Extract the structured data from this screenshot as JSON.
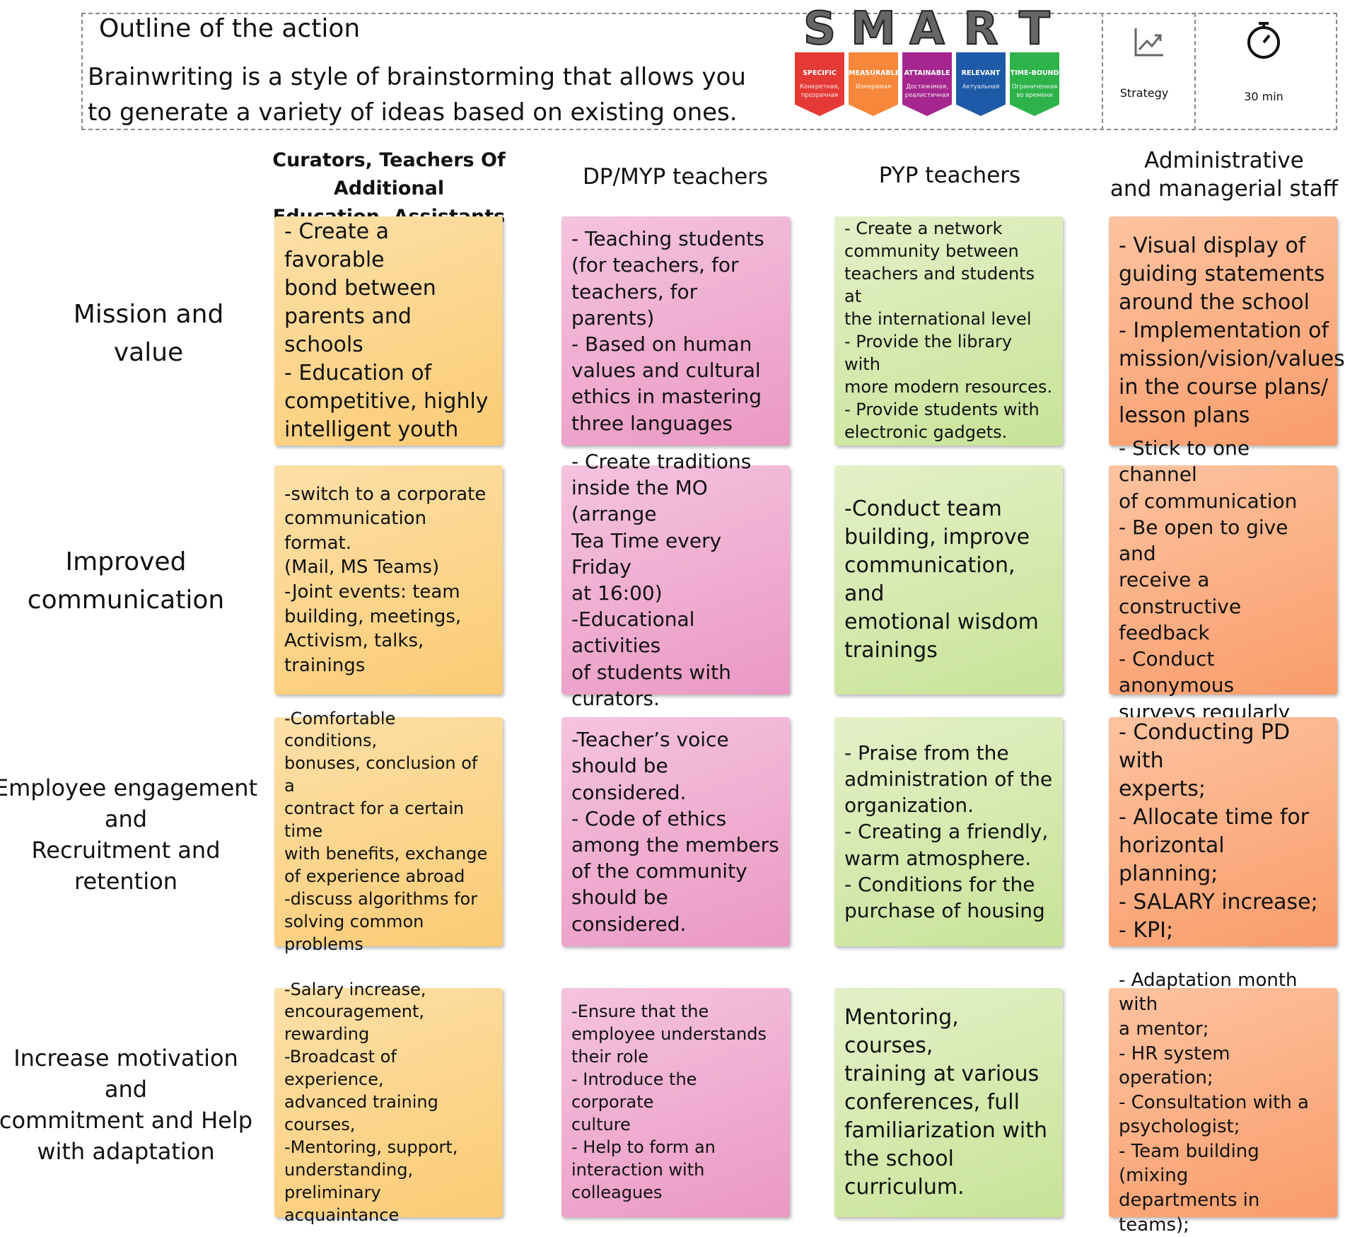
{
  "header": {
    "title": "Outline of the action",
    "description": "Brainwriting is a style of brainstorming that allows you\nto generate a variety of ideas based on existing ones.",
    "smart": {
      "letters": [
        "S",
        "M",
        "A",
        "R",
        "T"
      ],
      "banners": [
        {
          "label": "SPECIFIC",
          "sublabel": "Конкретная, прозрачная"
        },
        {
          "label": "MEASURABLE",
          "sublabel": "Измеримая"
        },
        {
          "label": "ATTAINABLE",
          "sublabel": "Достижимая, реалистичная"
        },
        {
          "label": "RELEVANT",
          "sublabel": "Актуальная"
        },
        {
          "label": "TIME-BOUND",
          "sublabel": "Ограниченная во времени"
        }
      ]
    },
    "strategy": "Strategy",
    "duration": "30 min"
  },
  "columns": [
    "Curators, Teachers Of Additional\nEducation, Assistants",
    "DP/MYP teachers",
    "PYP teachers",
    "Administrative\nand managerial staff"
  ],
  "rows": [
    {
      "label": "Mission and\nvalue",
      "cards": [
        "- Create a favorable\nbond between\nparents and schools\n- Education of\ncompetitive, highly\nintelligent youth",
        "- Teaching students\n(for teachers, for\nteachers, for parents)\n- Based on human\nvalues and cultural\nethics in mastering\nthree languages",
        "- Create a network\ncommunity between\nteachers and students at\nthe international level\n- Provide the library with\nmore modern resources.\n- Provide students with\nelectronic gadgets.",
        "- Visual display of\nguiding statements\naround the school\n- Implementation of\nmission/vision/values\nin the course plans/\nlesson plans"
      ]
    },
    {
      "label": "Improved\ncommunication",
      "cards": [
        "-switch to a corporate\ncommunication format.\n(Mail, MS Teams)\n-Joint events: team\nbuilding, meetings,\nActivism, talks, trainings",
        "- Create traditions\ninside the MO (arrange\nTea Time every Friday\nat 16:00)\n-Educational activities\nof students with\ncurators.",
        "-Conduct team\nbuilding, improve\ncommunication, and\nemotional wisdom\ntrainings",
        "- Stick to one channel\nof communication\n- Be open to give and\nreceive a constructive\nfeedback\n- Conduct anonymous\nsurveys regularly"
      ]
    },
    {
      "label": "Employee engagement\nand\nRecruitment and\nretention",
      "cards": [
        "-Comfortable conditions,\nbonuses, conclusion of a\ncontract for a certain time\nwith benefits, exchange\nof experience abroad\n-discuss algorithms for\nsolving common\nproblems",
        "-Teacher’s voice\nshould be considered.\n- Code of ethics\namong the members\nof the community\nshould be considered.",
        "- Praise from the\nadministration of the\norganization.\n- Creating a friendly,\nwarm atmosphere.\n- Conditions for the\npurchase of housing",
        "- Conducting PD with\nexperts;\n- Allocate time for\nhorizontal planning;\n- SALARY increase;\n- KPI;"
      ]
    },
    {
      "label": "Increase motivation and\ncommitment and Help\nwith adaptation",
      "cards": [
        "-Salary increase,\nencouragement, rewarding\n-Broadcast of experience,\nadvanced training courses,\n-Mentoring, support,\nunderstanding, preliminary\nacquaintance",
        "-Ensure that the\nemployee understands\ntheir role\n- Introduce the corporate\nculture\n- Help to form an\ninteraction with\ncolleagues",
        "Mentoring, courses,\ntraining at various\nconferences, full\nfamiliarization with\nthe school\ncurriculum.",
        "- Adaptation month with\na mentor;\n- HR system operation;\n- Consultation with a\npsychologist;\n- Team building (mixing\ndepartments in teams);"
      ]
    }
  ]
}
